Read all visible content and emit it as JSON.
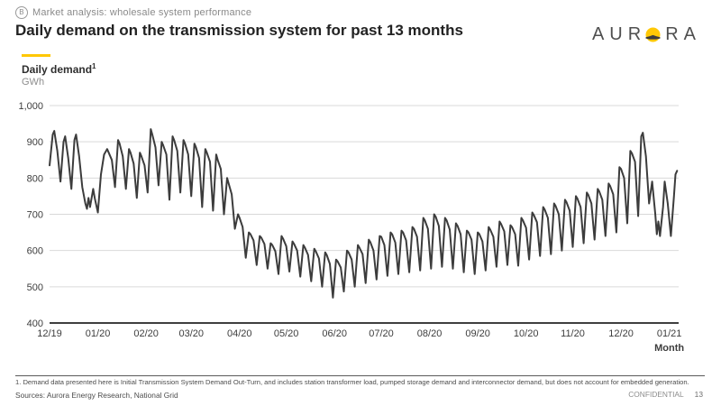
{
  "header": {
    "eyebrow_icon_letter": "B",
    "eyebrow": "Market analysis:  wholesale system performance",
    "title": "Daily demand on the transmission system for past 13 months"
  },
  "logo": {
    "prefix": "AUR",
    "suffix": "RA",
    "icon": "aurora-sunrise-icon",
    "sun_color": "#FFC805",
    "hill_color": "#3d3d3d"
  },
  "legend": {
    "accent_color": "#FFC805",
    "label": "Daily demand",
    "footnote_marker": "1",
    "unit": "GWh"
  },
  "chart_data": {
    "type": "line",
    "title": "Daily demand on the transmission system for past 13 months",
    "xlabel": "Month",
    "ylabel": "GWh",
    "ylim": [
      400,
      1000
    ],
    "xlim_days": [
      0,
      404
    ],
    "grid": "horizontal",
    "gridline_color": "#d9d9d9",
    "axis_color": "#3f3f3f",
    "tick_label_color": "#3d3d3d",
    "y_ticks": [
      {
        "value": 1000,
        "label": "1,000"
      },
      {
        "value": 900,
        "label": "900"
      },
      {
        "value": 800,
        "label": "800"
      },
      {
        "value": 700,
        "label": "700"
      },
      {
        "value": 600,
        "label": "600"
      },
      {
        "value": 500,
        "label": "500"
      },
      {
        "value": 400,
        "label": "400"
      }
    ],
    "x_ticks": [
      {
        "label": "12/19",
        "day": 0
      },
      {
        "label": "01/20",
        "day": 31
      },
      {
        "label": "02/20",
        "day": 62
      },
      {
        "label": "03/20",
        "day": 91
      },
      {
        "label": "04/20",
        "day": 122
      },
      {
        "label": "05/20",
        "day": 152
      },
      {
        "label": "06/20",
        "day": 183
      },
      {
        "label": "07/20",
        "day": 213
      },
      {
        "label": "08/20",
        "day": 244
      },
      {
        "label": "09/20",
        "day": 275
      },
      {
        "label": "10/20",
        "day": 306
      },
      {
        "label": "11/20",
        "day": 336
      },
      {
        "label": "12/20",
        "day": 367
      },
      {
        "label": "01/21",
        "day": 398
      }
    ],
    "series": [
      {
        "name": "Daily demand (GWh)",
        "color": "#3c3c3c",
        "points": [
          [
            0,
            835
          ],
          [
            2,
            920
          ],
          [
            3,
            930
          ],
          [
            5,
            875
          ],
          [
            7,
            790
          ],
          [
            9,
            900
          ],
          [
            10,
            915
          ],
          [
            12,
            855
          ],
          [
            14,
            770
          ],
          [
            16,
            905
          ],
          [
            17,
            920
          ],
          [
            19,
            860
          ],
          [
            21,
            775
          ],
          [
            23,
            730
          ],
          [
            24,
            715
          ],
          [
            25,
            745
          ],
          [
            26,
            720
          ],
          [
            28,
            770
          ],
          [
            29,
            745
          ],
          [
            31,
            705
          ],
          [
            33,
            810
          ],
          [
            35,
            865
          ],
          [
            37,
            880
          ],
          [
            40,
            850
          ],
          [
            42,
            775
          ],
          [
            44,
            905
          ],
          [
            45,
            895
          ],
          [
            47,
            860
          ],
          [
            49,
            770
          ],
          [
            51,
            880
          ],
          [
            52,
            870
          ],
          [
            54,
            840
          ],
          [
            56,
            745
          ],
          [
            58,
            870
          ],
          [
            59,
            860
          ],
          [
            61,
            835
          ],
          [
            63,
            760
          ],
          [
            65,
            935
          ],
          [
            66,
            920
          ],
          [
            68,
            885
          ],
          [
            70,
            780
          ],
          [
            72,
            900
          ],
          [
            73,
            890
          ],
          [
            75,
            865
          ],
          [
            77,
            740
          ],
          [
            79,
            915
          ],
          [
            80,
            905
          ],
          [
            82,
            875
          ],
          [
            84,
            760
          ],
          [
            86,
            905
          ],
          [
            87,
            895
          ],
          [
            89,
            865
          ],
          [
            91,
            750
          ],
          [
            93,
            895
          ],
          [
            94,
            885
          ],
          [
            96,
            855
          ],
          [
            98,
            720
          ],
          [
            100,
            880
          ],
          [
            101,
            870
          ],
          [
            103,
            845
          ],
          [
            105,
            710
          ],
          [
            107,
            865
          ],
          [
            108,
            850
          ],
          [
            110,
            825
          ],
          [
            112,
            700
          ],
          [
            114,
            800
          ],
          [
            115,
            785
          ],
          [
            117,
            755
          ],
          [
            119,
            660
          ],
          [
            121,
            700
          ],
          [
            122,
            690
          ],
          [
            124,
            665
          ],
          [
            126,
            580
          ],
          [
            128,
            650
          ],
          [
            129,
            645
          ],
          [
            131,
            628
          ],
          [
            133,
            560
          ],
          [
            135,
            640
          ],
          [
            136,
            635
          ],
          [
            138,
            618
          ],
          [
            140,
            550
          ],
          [
            142,
            620
          ],
          [
            143,
            615
          ],
          [
            145,
            598
          ],
          [
            147,
            535
          ],
          [
            149,
            640
          ],
          [
            150,
            632
          ],
          [
            152,
            612
          ],
          [
            154,
            542
          ],
          [
            156,
            625
          ],
          [
            157,
            618
          ],
          [
            159,
            600
          ],
          [
            161,
            528
          ],
          [
            163,
            615
          ],
          [
            164,
            608
          ],
          [
            166,
            588
          ],
          [
            168,
            515
          ],
          [
            170,
            605
          ],
          [
            171,
            598
          ],
          [
            173,
            578
          ],
          [
            175,
            500
          ],
          [
            177,
            595
          ],
          [
            178,
            588
          ],
          [
            180,
            563
          ],
          [
            182,
            470
          ],
          [
            184,
            575
          ],
          [
            185,
            570
          ],
          [
            187,
            553
          ],
          [
            189,
            487
          ],
          [
            191,
            600
          ],
          [
            192,
            595
          ],
          [
            194,
            575
          ],
          [
            196,
            500
          ],
          [
            198,
            615
          ],
          [
            199,
            608
          ],
          [
            201,
            590
          ],
          [
            203,
            510
          ],
          [
            205,
            630
          ],
          [
            206,
            623
          ],
          [
            208,
            600
          ],
          [
            210,
            520
          ],
          [
            212,
            640
          ],
          [
            213,
            638
          ],
          [
            215,
            615
          ],
          [
            217,
            530
          ],
          [
            219,
            650
          ],
          [
            220,
            645
          ],
          [
            222,
            622
          ],
          [
            224,
            535
          ],
          [
            226,
            655
          ],
          [
            227,
            650
          ],
          [
            229,
            628
          ],
          [
            231,
            540
          ],
          [
            233,
            665
          ],
          [
            234,
            660
          ],
          [
            236,
            638
          ],
          [
            238,
            545
          ],
          [
            240,
            690
          ],
          [
            241,
            683
          ],
          [
            243,
            660
          ],
          [
            245,
            550
          ],
          [
            247,
            700
          ],
          [
            248,
            693
          ],
          [
            250,
            668
          ],
          [
            252,
            555
          ],
          [
            254,
            690
          ],
          [
            255,
            683
          ],
          [
            257,
            658
          ],
          [
            259,
            550
          ],
          [
            261,
            675
          ],
          [
            262,
            668
          ],
          [
            264,
            645
          ],
          [
            266,
            540
          ],
          [
            268,
            655
          ],
          [
            269,
            650
          ],
          [
            271,
            630
          ],
          [
            273,
            535
          ],
          [
            275,
            650
          ],
          [
            276,
            645
          ],
          [
            278,
            625
          ],
          [
            280,
            545
          ],
          [
            282,
            665
          ],
          [
            283,
            658
          ],
          [
            285,
            638
          ],
          [
            287,
            555
          ],
          [
            289,
            680
          ],
          [
            290,
            673
          ],
          [
            292,
            653
          ],
          [
            294,
            560
          ],
          [
            296,
            670
          ],
          [
            297,
            665
          ],
          [
            299,
            645
          ],
          [
            301,
            558
          ],
          [
            303,
            690
          ],
          [
            304,
            683
          ],
          [
            306,
            663
          ],
          [
            308,
            575
          ],
          [
            310,
            705
          ],
          [
            311,
            698
          ],
          [
            313,
            678
          ],
          [
            315,
            585
          ],
          [
            317,
            720
          ],
          [
            318,
            713
          ],
          [
            320,
            690
          ],
          [
            322,
            590
          ],
          [
            324,
            730
          ],
          [
            325,
            723
          ],
          [
            327,
            700
          ],
          [
            329,
            600
          ],
          [
            331,
            740
          ],
          [
            332,
            733
          ],
          [
            334,
            710
          ],
          [
            336,
            610
          ],
          [
            338,
            750
          ],
          [
            339,
            743
          ],
          [
            341,
            720
          ],
          [
            343,
            620
          ],
          [
            345,
            760
          ],
          [
            346,
            753
          ],
          [
            348,
            730
          ],
          [
            350,
            630
          ],
          [
            352,
            770
          ],
          [
            353,
            763
          ],
          [
            355,
            740
          ],
          [
            357,
            640
          ],
          [
            359,
            785
          ],
          [
            360,
            778
          ],
          [
            362,
            755
          ],
          [
            364,
            650
          ],
          [
            366,
            830
          ],
          [
            367,
            825
          ],
          [
            369,
            800
          ],
          [
            371,
            675
          ],
          [
            373,
            875
          ],
          [
            374,
            868
          ],
          [
            376,
            845
          ],
          [
            378,
            695
          ],
          [
            380,
            915
          ],
          [
            381,
            925
          ],
          [
            383,
            860
          ],
          [
            385,
            730
          ],
          [
            387,
            790
          ],
          [
            389,
            700
          ],
          [
            390,
            645
          ],
          [
            391,
            680
          ],
          [
            392,
            640
          ],
          [
            394,
            720
          ],
          [
            395,
            790
          ],
          [
            397,
            730
          ],
          [
            399,
            640
          ],
          [
            401,
            750
          ],
          [
            402,
            810
          ],
          [
            403,
            820
          ]
        ]
      }
    ]
  },
  "footer": {
    "footnote": "1.  Demand data presented here is Initial Transmission System Demand Out-Turn, and includes station transformer load, pumped storage demand and interconnector demand, but does not account for embedded generation.",
    "sources": "Sources: Aurora Energy Research, National Grid",
    "confidential": "CONFIDENTIAL",
    "page_number": "13"
  }
}
